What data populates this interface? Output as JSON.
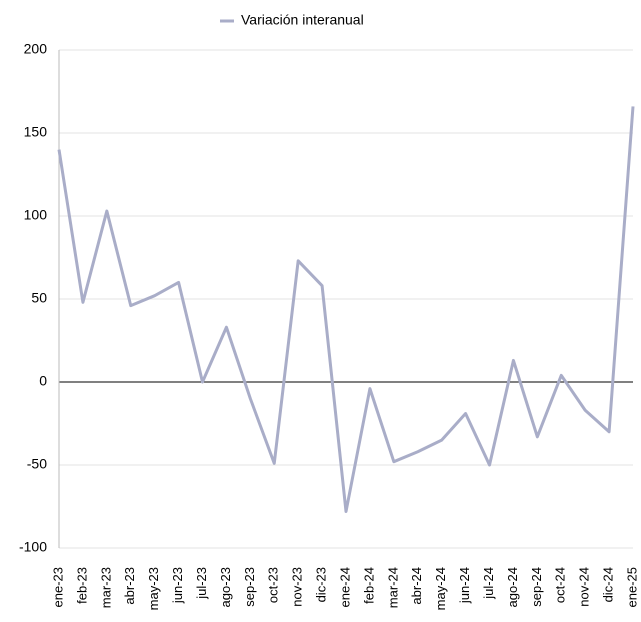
{
  "chart_data": {
    "type": "line",
    "categories": [
      "ene-23",
      "feb-23",
      "mar-23",
      "abr-23",
      "may-23",
      "jun-23",
      "jul-23",
      "ago-23",
      "sep-23",
      "oct-23",
      "nov-23",
      "dic-23",
      "ene-24",
      "feb-24",
      "mar-24",
      "abr-24",
      "may-24",
      "jun-24",
      "jul-24",
      "ago-24",
      "sep-24",
      "oct-24",
      "nov-24",
      "dic-24",
      "ene-25"
    ],
    "series": [
      {
        "name": "Variación interanual",
        "color": "#a9adc8",
        "values": [
          140,
          48,
          103,
          46,
          52,
          60,
          0,
          33,
          -10,
          -49,
          73,
          58,
          -78,
          -4,
          -48,
          -42,
          -35,
          -19,
          -50,
          13,
          -33,
          4,
          -17,
          -30,
          166
        ]
      }
    ],
    "ylim": [
      -100,
      200
    ],
    "yticks": [
      -100,
      -50,
      0,
      50,
      100,
      150,
      200
    ],
    "grid": true,
    "legend": "top"
  }
}
